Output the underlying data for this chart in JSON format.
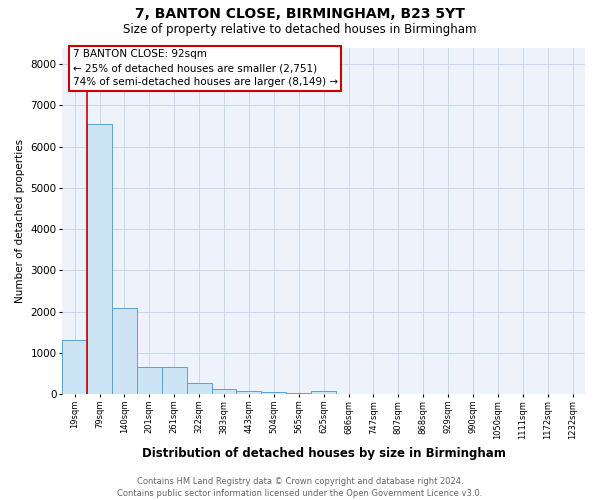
{
  "title_line1": "7, BANTON CLOSE, BIRMINGHAM, B23 5YT",
  "title_line2": "Size of property relative to detached houses in Birmingham",
  "xlabel": "Distribution of detached houses by size in Birmingham",
  "ylabel": "Number of detached properties",
  "categories": [
    "19sqm",
    "79sqm",
    "140sqm",
    "201sqm",
    "261sqm",
    "322sqm",
    "383sqm",
    "443sqm",
    "504sqm",
    "565sqm",
    "625sqm",
    "686sqm",
    "747sqm",
    "807sqm",
    "868sqm",
    "929sqm",
    "990sqm",
    "1050sqm",
    "1111sqm",
    "1172sqm",
    "1232sqm"
  ],
  "values": [
    1300,
    6550,
    2075,
    650,
    650,
    280,
    120,
    75,
    50,
    20,
    75,
    0,
    0,
    0,
    0,
    0,
    0,
    0,
    0,
    0,
    0
  ],
  "bar_color": "#cde4f5",
  "bar_edge_color": "#5ba3d0",
  "red_line_x": 0.5,
  "ylim": [
    0,
    8400
  ],
  "yticks": [
    0,
    1000,
    2000,
    3000,
    4000,
    5000,
    6000,
    7000,
    8000
  ],
  "annotation_title": "7 BANTON CLOSE: 92sqm",
  "annotation_line1": "← 25% of detached houses are smaller (2,751)",
  "annotation_line2": "74% of semi-detached houses are larger (8,149) →",
  "annotation_box_color": "#cc0000",
  "footer_line1": "Contains HM Land Registry data © Crown copyright and database right 2024.",
  "footer_line2": "Contains public sector information licensed under the Open Government Licence v3.0.",
  "grid_color": "#c8d8ee",
  "background_color": "#eef2fb"
}
